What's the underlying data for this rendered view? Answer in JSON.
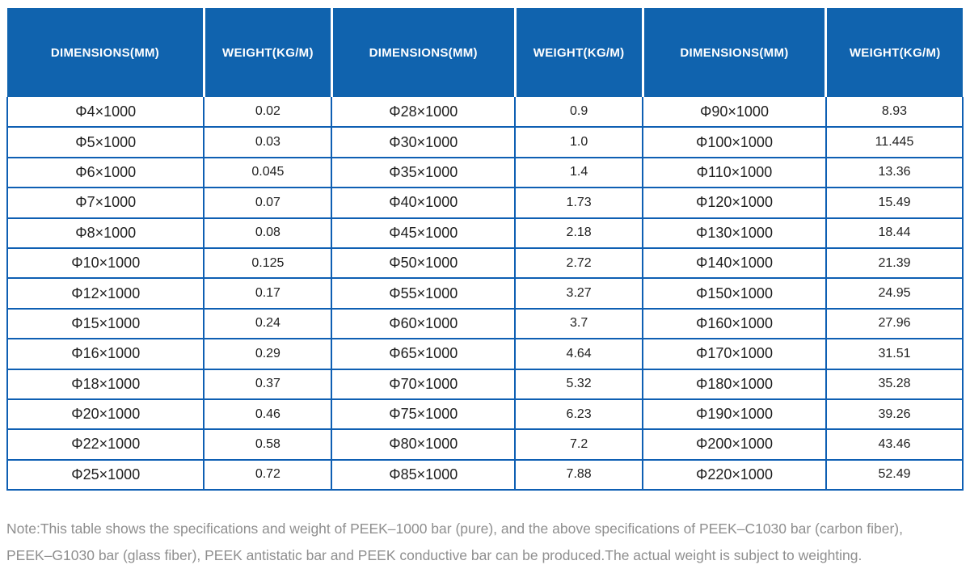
{
  "chart_data": {
    "type": "table",
    "title": "",
    "headers": [
      "DIMENSIONS(MM)",
      "WEIGHT(KG/M)",
      "DIMENSIONS(MM)",
      "WEIGHT(KG/M)",
      "DIMENSIONS(MM)",
      "WEIGHT(KG/M)"
    ],
    "rows": [
      [
        "Φ4×1000",
        "0.02",
        "Φ28×1000",
        "0.9",
        "Φ90×1000",
        "8.93"
      ],
      [
        "Φ5×1000",
        "0.03",
        "Φ30×1000",
        "1.0",
        "Φ100×1000",
        "11.445"
      ],
      [
        "Φ6×1000",
        "0.045",
        "Φ35×1000",
        "1.4",
        "Φ110×1000",
        "13.36"
      ],
      [
        "Φ7×1000",
        "0.07",
        "Φ40×1000",
        "1.73",
        "Φ120×1000",
        "15.49"
      ],
      [
        "Φ8×1000",
        "0.08",
        "Φ45×1000",
        "2.18",
        "Φ130×1000",
        "18.44"
      ],
      [
        "Φ10×1000",
        "0.125",
        "Φ50×1000",
        "2.72",
        "Φ140×1000",
        "21.39"
      ],
      [
        "Φ12×1000",
        "0.17",
        "Φ55×1000",
        "3.27",
        "Φ150×1000",
        "24.95"
      ],
      [
        "Φ15×1000",
        "0.24",
        "Φ60×1000",
        "3.7",
        "Φ160×1000",
        "27.96"
      ],
      [
        "Φ16×1000",
        "0.29",
        "Φ65×1000",
        "4.64",
        "Φ170×1000",
        "31.51"
      ],
      [
        "Φ18×1000",
        "0.37",
        "Φ70×1000",
        "5.32",
        "Φ180×1000",
        "35.28"
      ],
      [
        "Φ20×1000",
        "0.46",
        "Φ75×1000",
        "6.23",
        "Φ190×1000",
        "39.26"
      ],
      [
        "Φ22×1000",
        "0.58",
        "Φ80×1000",
        "7.2",
        "Φ200×1000",
        "43.46"
      ],
      [
        "Φ25×1000",
        "0.72",
        "Φ85×1000",
        "7.88",
        "Φ220×1000",
        "52.49"
      ]
    ]
  },
  "note": {
    "line1": "Note:This table shows the specifications and weight of PEEK–1000 bar (pure), and the above specifications of PEEK–C1030 bar (carbon fiber),",
    "line2": "PEEK–G1030 bar (glass fiber), PEEK antistatic bar and PEEK conductive bar can be produced.The actual weight is subject to weighting."
  },
  "colors": {
    "header_bg": "#1063ae",
    "header_text": "#ffffff",
    "border": "#0e5fb3",
    "body_text": "#1f1f1f",
    "note_text": "#8f8f8f"
  }
}
